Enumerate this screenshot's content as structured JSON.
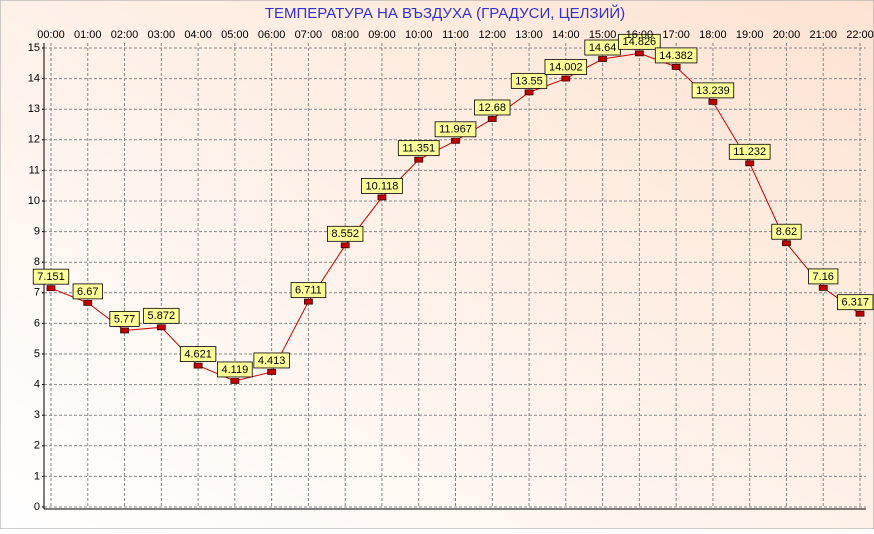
{
  "chart_data": {
    "type": "line",
    "title": "ТЕМПЕРАТУРА НА ВЪЗДУХА  (ГРАДУСИ, ЦЕЛЗИЙ)",
    "categories": [
      "00:00",
      "01:00",
      "02:00",
      "03:00",
      "04:00",
      "05:00",
      "06:00",
      "07:00",
      "08:00",
      "09:00",
      "10:00",
      "11:00",
      "12:00",
      "13:00",
      "14:00",
      "15:00",
      "16:00",
      "17:00",
      "18:00",
      "19:00",
      "20:00",
      "21:00",
      "22:00"
    ],
    "values": [
      7.151,
      6.67,
      5.77,
      5.872,
      4.621,
      4.119,
      4.413,
      6.711,
      8.552,
      10.118,
      11.351,
      11.967,
      12.68,
      13.55,
      14.002,
      14.64,
      14.826,
      14.382,
      13.239,
      11.232,
      8.62,
      7.16,
      6.317
    ],
    "color": "#cc0000",
    "marker_color": "#c00000",
    "label_color": "#ffff99",
    "ylim": [
      0,
      15
    ],
    "yticks": [
      0,
      1,
      2,
      3,
      4,
      5,
      6,
      7,
      8,
      9,
      10,
      11,
      12,
      13,
      14,
      15
    ],
    "grid": true
  }
}
